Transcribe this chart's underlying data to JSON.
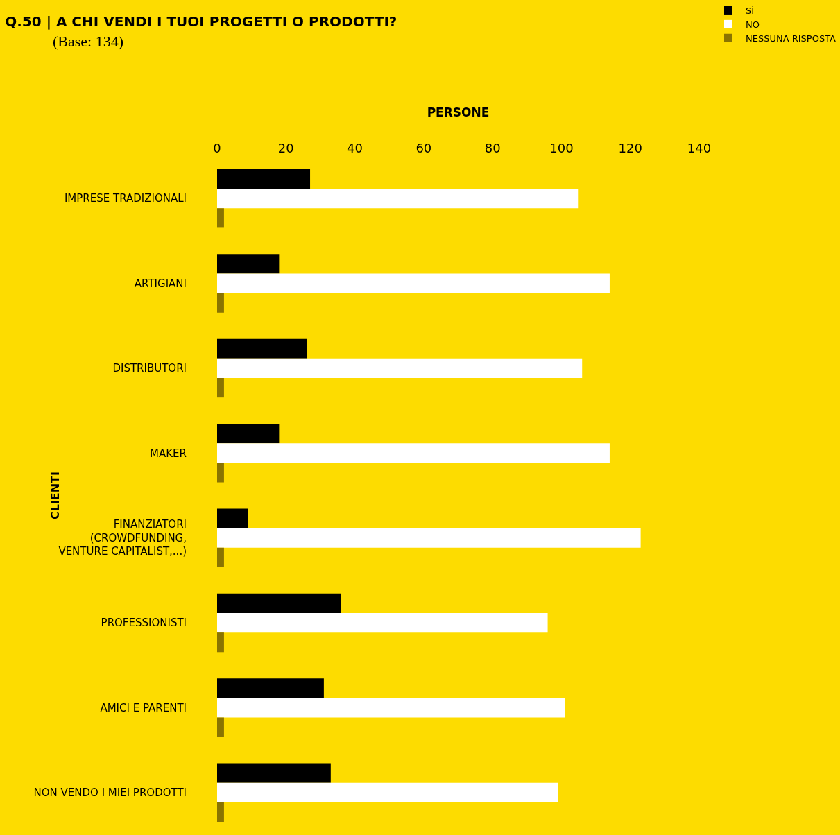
{
  "chart_data": {
    "type": "bar",
    "orientation": "horizontal",
    "title": "Q.50 | A CHI VENDI I TUOI PROGETTI O PRODOTTI?",
    "subtitle": "(Base: 134)",
    "xlabel": "PERSONE",
    "ylabel": "CLIENTI",
    "categories": [
      "IMPRESE TRADIZIONALI",
      "ARTIGIANI",
      "DISTRIBUTORI",
      "MAKER",
      "FINANZIATORI\n(CROWDFUNDING,\nVENTURE CAPITALIST,...)",
      "PROFESSIONISTI",
      "AMICI E PARENTI",
      "NON VENDO I MIEI PRODOTTI"
    ],
    "series": [
      {
        "name": "SÌ",
        "color": "#000000",
        "values": [
          27,
          18,
          26,
          18,
          9,
          36,
          31,
          33
        ]
      },
      {
        "name": "NO",
        "color": "#ffffff",
        "values": [
          105,
          114,
          106,
          114,
          123,
          96,
          101,
          99
        ]
      },
      {
        "name": "NESSUNA RISPOSTA",
        "color": "#8a7400",
        "values": [
          2,
          2,
          2,
          2,
          2,
          2,
          2,
          2
        ]
      }
    ],
    "xlim": [
      0,
      140
    ],
    "xticks": [
      0,
      20,
      40,
      60,
      80,
      100,
      120,
      140
    ],
    "grid": false,
    "legend": "top right"
  }
}
